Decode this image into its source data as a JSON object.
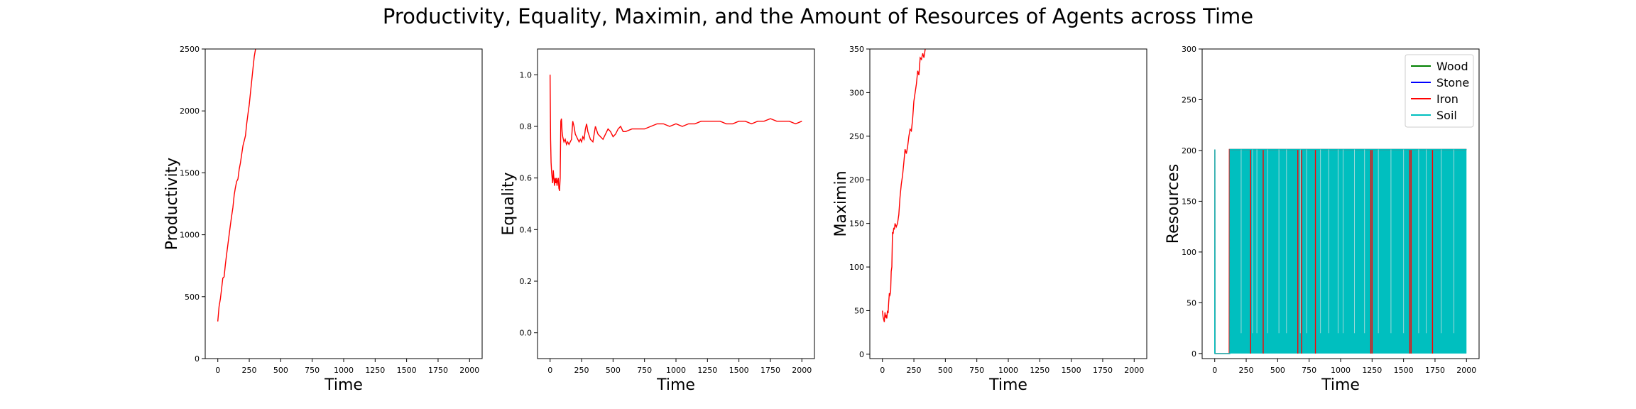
{
  "figure": {
    "title": "Productivity, Equality, Maximin, and the Amount of Resources of Agents across Time"
  },
  "chart_data": [
    {
      "type": "line",
      "title": "",
      "xlabel": "Time",
      "ylabel": "Productivity",
      "xlim": [
        -100,
        2100
      ],
      "ylim": [
        0,
        2500
      ],
      "xticks": [
        0,
        250,
        500,
        750,
        1000,
        1250,
        1500,
        1750,
        2000
      ],
      "yticks": [
        0,
        500,
        1000,
        1500,
        2000,
        2500
      ],
      "grid": false,
      "series": [
        {
          "color": "#ff0000",
          "x": [
            0,
            10,
            20,
            30,
            40,
            50,
            60,
            70,
            80,
            90,
            100,
            110,
            120,
            130,
            140,
            150,
            160,
            170,
            180,
            190,
            200,
            210,
            220,
            230,
            240,
            250,
            260,
            270,
            280,
            290,
            300
          ],
          "y": [
            300,
            420,
            480,
            560,
            650,
            660,
            760,
            840,
            920,
            1000,
            1080,
            1150,
            1220,
            1320,
            1380,
            1430,
            1450,
            1530,
            1580,
            1650,
            1720,
            1760,
            1800,
            1900,
            1980,
            2050,
            2150,
            2250,
            2350,
            2440,
            2500
          ]
        }
      ]
    },
    {
      "type": "line",
      "title": "",
      "xlabel": "Time",
      "ylabel": "Equality",
      "xlim": [
        -100,
        2100
      ],
      "ylim": [
        -0.1,
        1.1
      ],
      "xticks": [
        0,
        250,
        500,
        750,
        1000,
        1250,
        1500,
        1750,
        2000
      ],
      "yticks": [
        0.0,
        0.2,
        0.4,
        0.6,
        0.8,
        1.0
      ],
      "grid": false,
      "series": [
        {
          "color": "#ff0000",
          "x": [
            0,
            4,
            8,
            12,
            16,
            20,
            25,
            30,
            35,
            40,
            45,
            50,
            55,
            60,
            65,
            70,
            75,
            80,
            85,
            90,
            95,
            100,
            110,
            120,
            130,
            140,
            150,
            160,
            170,
            180,
            190,
            200,
            210,
            220,
            230,
            240,
            250,
            260,
            270,
            280,
            290,
            300,
            320,
            340,
            360,
            380,
            400,
            420,
            440,
            460,
            480,
            500,
            520,
            540,
            560,
            580,
            600,
            650,
            700,
            750,
            800,
            850,
            900,
            950,
            1000,
            1050,
            1100,
            1150,
            1200,
            1250,
            1300,
            1350,
            1400,
            1450,
            1500,
            1550,
            1600,
            1650,
            1700,
            1750,
            1800,
            1850,
            1900,
            1950,
            2000
          ],
          "y": [
            1.0,
            0.75,
            0.66,
            0.62,
            0.6,
            0.58,
            0.63,
            0.6,
            0.57,
            0.6,
            0.58,
            0.6,
            0.57,
            0.59,
            0.6,
            0.56,
            0.55,
            0.6,
            0.82,
            0.83,
            0.78,
            0.76,
            0.74,
            0.75,
            0.73,
            0.74,
            0.73,
            0.74,
            0.75,
            0.82,
            0.8,
            0.77,
            0.76,
            0.75,
            0.74,
            0.75,
            0.74,
            0.76,
            0.75,
            0.79,
            0.81,
            0.78,
            0.75,
            0.74,
            0.8,
            0.77,
            0.76,
            0.75,
            0.77,
            0.79,
            0.78,
            0.76,
            0.77,
            0.79,
            0.8,
            0.78,
            0.78,
            0.79,
            0.79,
            0.79,
            0.8,
            0.81,
            0.81,
            0.8,
            0.81,
            0.8,
            0.81,
            0.81,
            0.82,
            0.82,
            0.82,
            0.82,
            0.81,
            0.81,
            0.82,
            0.82,
            0.81,
            0.82,
            0.82,
            0.83,
            0.82,
            0.82,
            0.82,
            0.81,
            0.82
          ]
        }
      ]
    },
    {
      "type": "line",
      "title": "",
      "xlabel": "Time",
      "ylabel": "Maximin",
      "xlim": [
        -100,
        2100
      ],
      "ylim": [
        -5,
        350
      ],
      "xticks": [
        0,
        250,
        500,
        750,
        1000,
        1250,
        1500,
        1750,
        2000
      ],
      "yticks": [
        0,
        50,
        100,
        150,
        200,
        250,
        300,
        350
      ],
      "grid": false,
      "series": [
        {
          "color": "#ff0000",
          "x": [
            0,
            5,
            10,
            15,
            20,
            25,
            30,
            35,
            40,
            45,
            50,
            55,
            60,
            65,
            70,
            75,
            80,
            85,
            90,
            95,
            100,
            105,
            110,
            120,
            130,
            140,
            150,
            160,
            170,
            180,
            190,
            200,
            210,
            220,
            230,
            240,
            250,
            260,
            270,
            280,
            290,
            300,
            310,
            320,
            330,
            340,
            350,
            360,
            370
          ],
          "y": [
            50,
            43,
            40,
            37,
            48,
            42,
            45,
            41,
            50,
            47,
            60,
            70,
            68,
            72,
            95,
            100,
            140,
            138,
            145,
            143,
            150,
            148,
            146,
            150,
            160,
            180,
            195,
            205,
            220,
            235,
            230,
            238,
            250,
            258,
            256,
            270,
            290,
            300,
            310,
            325,
            320,
            340,
            338,
            345,
            340,
            350,
            352,
            355,
            360
          ]
        }
      ]
    },
    {
      "type": "line",
      "title": "",
      "xlabel": "Time",
      "ylabel": "Resources",
      "xlim": [
        -100,
        2100
      ],
      "ylim": [
        -5,
        300
      ],
      "xticks": [
        0,
        250,
        500,
        750,
        1000,
        1250,
        1500,
        1750,
        2000
      ],
      "yticks": [
        0,
        50,
        100,
        150,
        200,
        250,
        300
      ],
      "grid": false,
      "legend": "top-right",
      "note_fill_band": [
        120,
        2000,
        0,
        201
      ],
      "series": [
        {
          "name": "Wood",
          "color": "#008000"
        },
        {
          "name": "Stone",
          "color": "#0000ff"
        },
        {
          "name": "Iron",
          "color": "#ff0000",
          "x": [
            0,
            1,
            2,
            110,
            115,
            116,
            2000
          ],
          "y": [
            0,
            201,
            0,
            0,
            0,
            201,
            201
          ],
          "drops": [
            285,
            385,
            660,
            690,
            800,
            1240,
            1250,
            1550,
            1560,
            1730
          ]
        },
        {
          "name": "Soil",
          "color": "#00bfbf",
          "x": [
            0,
            1,
            2,
            120,
            121,
            2000
          ],
          "y": [
            0,
            201,
            0,
            0,
            201,
            201
          ],
          "gaps": [
            210,
            300,
            335,
            420,
            510,
            570,
            680,
            730,
            840,
            905,
            980,
            1020,
            1110,
            1190,
            1300,
            1400,
            1500,
            1620,
            1680,
            1800,
            1900
          ]
        }
      ]
    }
  ]
}
